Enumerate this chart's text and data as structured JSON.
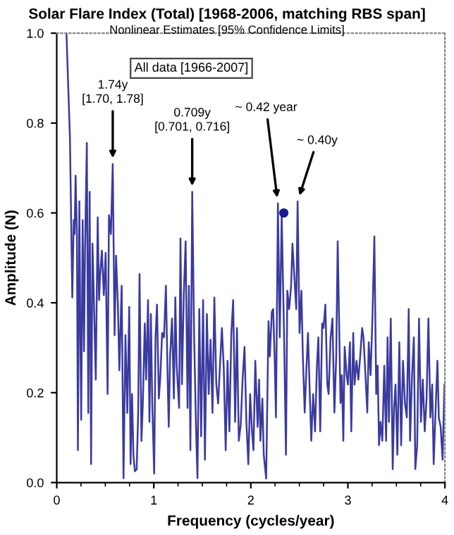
{
  "chart_data": {
    "type": "line",
    "title": "Solar Flare Index (Total) [1968-2006, matching RBS span]",
    "subtitle": "Nonlinear Estimates [95% Confidence Limits]",
    "xlabel": "Frequency (cycles/year)",
    "ylabel": "Amplitude (N)",
    "xlim": [
      0,
      4
    ],
    "xticks": [
      0,
      1,
      2,
      3,
      4
    ],
    "ylim": [
      0,
      1
    ],
    "yticks": [
      {
        "value": 0,
        "label": "0.0"
      },
      {
        "value": 0.2,
        "label": "0.2"
      },
      {
        "value": 0.4,
        "label": "0.4"
      },
      {
        "value": 0.6,
        "label": "0.6"
      },
      {
        "value": 0.8,
        "label": "0.8"
      },
      {
        "value": 1,
        "label": "1.0"
      }
    ],
    "grid": false,
    "legend": false,
    "marker": "none",
    "line_style": "solid",
    "series": [
      {
        "color": "#3a3aa0",
        "x": [
          0.1,
          0.136,
          0.16,
          0.175,
          0.184,
          0.194,
          0.208,
          0.218,
          0.233,
          0.242,
          0.252,
          0.267,
          0.281,
          0.291,
          0.31,
          0.325,
          0.339,
          0.354,
          0.368,
          0.383,
          0.402,
          0.422,
          0.436,
          0.446,
          0.465,
          0.485,
          0.504,
          0.524,
          0.538,
          0.558,
          0.577,
          0.596,
          0.611,
          0.63,
          0.645,
          0.669,
          0.688,
          0.708,
          0.727,
          0.747,
          0.761,
          0.776,
          0.79,
          0.805,
          0.824,
          0.839,
          0.853,
          0.873,
          0.887,
          0.907,
          0.921,
          0.941,
          0.955,
          0.97,
          0.984,
          1.004,
          1.018,
          1.033,
          1.052,
          1.067,
          1.086,
          1.105,
          1.125,
          1.144,
          1.154,
          1.168,
          1.188,
          1.207,
          1.222,
          1.236,
          1.261,
          1.275,
          1.29,
          1.309,
          1.328,
          1.348,
          1.362,
          1.377,
          1.396,
          1.416,
          1.435,
          1.45,
          1.469,
          1.488,
          1.508,
          1.527,
          1.547,
          1.566,
          1.585,
          1.605,
          1.624,
          1.644,
          1.663,
          1.682,
          1.702,
          1.721,
          1.741,
          1.76,
          1.779,
          1.799,
          1.818,
          1.838,
          1.857,
          1.876,
          1.896,
          1.915,
          1.935,
          1.954,
          1.974,
          1.993,
          2.012,
          2.027,
          2.046,
          2.07,
          2.085,
          2.099,
          2.119,
          2.133,
          2.158,
          2.182,
          2.196,
          2.216,
          2.23,
          2.245,
          2.259,
          2.279,
          2.298,
          2.318,
          2.342,
          2.362,
          2.376,
          2.395,
          2.415,
          2.429,
          2.448,
          2.468,
          2.482,
          2.502,
          2.521,
          2.536,
          2.555,
          2.57,
          2.589,
          2.609,
          2.623,
          2.642,
          2.662,
          2.681,
          2.696,
          2.715,
          2.735,
          2.749,
          2.768,
          2.788,
          2.802,
          2.822,
          2.841,
          2.861,
          2.88,
          2.895,
          2.909,
          2.924,
          2.938,
          2.953,
          2.967,
          2.987,
          3.001,
          3.021,
          3.035,
          3.055,
          3.069,
          3.089,
          3.108,
          3.127,
          3.147,
          3.161,
          3.181,
          3.2,
          3.215,
          3.234,
          3.253,
          3.273,
          3.292,
          3.307,
          3.321,
          3.336,
          3.355,
          3.375,
          3.394,
          3.409,
          3.423,
          3.442,
          3.462,
          3.476,
          3.491,
          3.51,
          3.53,
          3.549,
          3.568,
          3.588,
          3.607,
          3.627,
          3.641,
          3.661,
          3.68,
          3.695,
          3.714,
          3.733,
          3.753,
          3.772,
          3.792,
          3.811,
          3.83,
          3.85,
          3.869,
          3.884,
          3.903,
          3.923,
          3.937,
          3.956,
          3.976,
          3.995
        ],
        "values": [
          1.0,
          0.767,
          0.412,
          0.584,
          0.553,
          0.683,
          0.553,
          0.072,
          0.626,
          0.365,
          0.14,
          0.584,
          0.292,
          0.511,
          0.756,
          0.155,
          0.647,
          0.041,
          0.532,
          0.406,
          0.229,
          0.59,
          0.406,
          0.458,
          0.516,
          0.417,
          0.511,
          0.197,
          0.595,
          0.553,
          0.709,
          0.328,
          0.505,
          0.396,
          0.25,
          0.438,
          0.01,
          0.328,
          0.155,
          0.391,
          0.041,
          0.197,
          0.062,
          0.025,
          0.03,
          0.155,
          0.464,
          0.093,
          0.176,
          0.354,
          0.229,
          0.406,
          0.135,
          0.375,
          0.176,
          0.02,
          0.323,
          0.396,
          0.187,
          0.234,
          0.333,
          0.323,
          0.438,
          0.219,
          0.124,
          0.281,
          0.365,
          0.187,
          0.412,
          0.26,
          0.166,
          0.543,
          0.219,
          0.417,
          0.537,
          0.166,
          0.438,
          0.072,
          0.647,
          0.323,
          0.124,
          0.01,
          0.386,
          0.103,
          0.406,
          0.051,
          0.375,
          0.197,
          0.318,
          0.155,
          0.412,
          0.219,
          0.176,
          0.26,
          0.344,
          0.255,
          0.072,
          0.271,
          0.114,
          0.333,
          0.406,
          0.135,
          0.344,
          0.093,
          0.129,
          0.229,
          0.302,
          0.135,
          0.041,
          0.197,
          0.114,
          0.072,
          0.271,
          0.124,
          0.229,
          0.093,
          0.187,
          0.062,
          0.009,
          0.359,
          0.281,
          0.38,
          0.386,
          0.281,
          0.145,
          0.621,
          0.323,
          0.595,
          0.333,
          0.062,
          0.427,
          0.386,
          0.438,
          0.532,
          0.459,
          0.386,
          0.626,
          0.333,
          0.427,
          0.281,
          0.156,
          0.239,
          0.333,
          0.187,
          0.093,
          0.197,
          0.114,
          0.26,
          0.323,
          0.114,
          0.354,
          0.344,
          0.396,
          0.218,
          0.197,
          0.323,
          0.365,
          0.156,
          0.281,
          0.537,
          0.365,
          0.177,
          0.239,
          0.093,
          0.302,
          0.239,
          0.218,
          0.312,
          0.114,
          0.333,
          0.218,
          0.271,
          0.229,
          0.281,
          0.344,
          0.323,
          0.239,
          0.156,
          0.312,
          0.239,
          0.365,
          0.548,
          0.197,
          0.26,
          0.083,
          0.135,
          0.093,
          0.26,
          0.093,
          0.323,
          0.135,
          0.365,
          0.03,
          0.166,
          0.218,
          0.062,
          0.312,
          0.083,
          0.271,
          0.177,
          0.145,
          0.386,
          0.093,
          0.239,
          0.323,
          0.03,
          0.083,
          0.365,
          0.135,
          0.229,
          0.114,
          0.187,
          0.365,
          0.145,
          0.218,
          0.041,
          0.156,
          0.271,
          0.145,
          0.124,
          0.051,
          0.218
        ]
      },
      {
        "type": "scatter",
        "color": "#1a1a8c",
        "marker": "circle",
        "x": [
          2.34
        ],
        "values": [
          0.6
        ]
      }
    ],
    "annotations": [
      {
        "text": "1.74y\n[1.70, 1.78]",
        "x": 0.577,
        "y": 0.709
      },
      {
        "text": "0.709y\n[0.701, 0.716]",
        "x": 1.396,
        "y": 0.647
      },
      {
        "text": "~ 0.42 year",
        "x": 2.279,
        "y": 0.621
      },
      {
        "text": "~ 0.40y",
        "x": 2.482,
        "y": 0.626
      },
      "All data [1966-2007]"
    ]
  }
}
